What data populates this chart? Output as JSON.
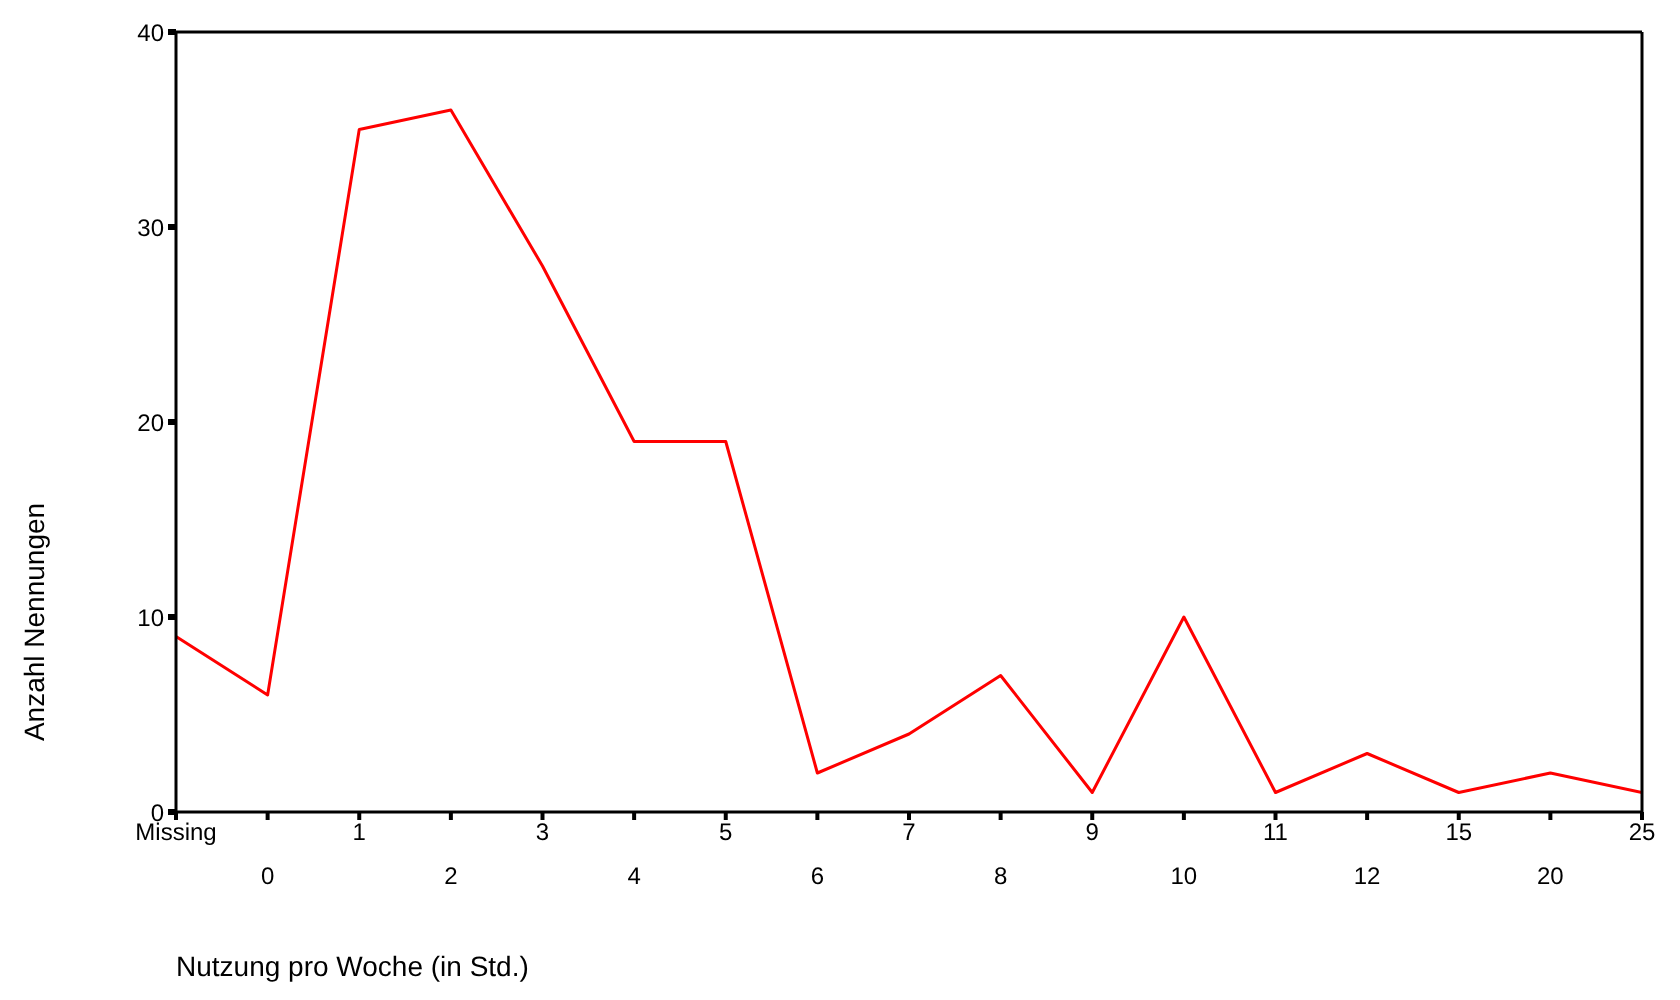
{
  "chart_data": {
    "type": "line",
    "xlabel": "Nutzung pro Woche (in Std.)",
    "ylabel": "Anzahl Nennungen",
    "categories": [
      "Missing",
      "0",
      "1",
      "2",
      "3",
      "4",
      "5",
      "6",
      "7",
      "8",
      "9",
      "10",
      "11",
      "12",
      "15",
      "20",
      "25"
    ],
    "series": [
      {
        "color": "#ff0000",
        "values": [
          9,
          6,
          35,
          36,
          28,
          19,
          19,
          2,
          4,
          7,
          1,
          10,
          1,
          3,
          1,
          2,
          1
        ]
      }
    ],
    "ylim": [
      0,
      40
    ],
    "yticks": [
      0,
      10,
      20,
      30,
      40
    ],
    "grid": false,
    "legend": false,
    "marker": "none",
    "line_style": "solid"
  }
}
